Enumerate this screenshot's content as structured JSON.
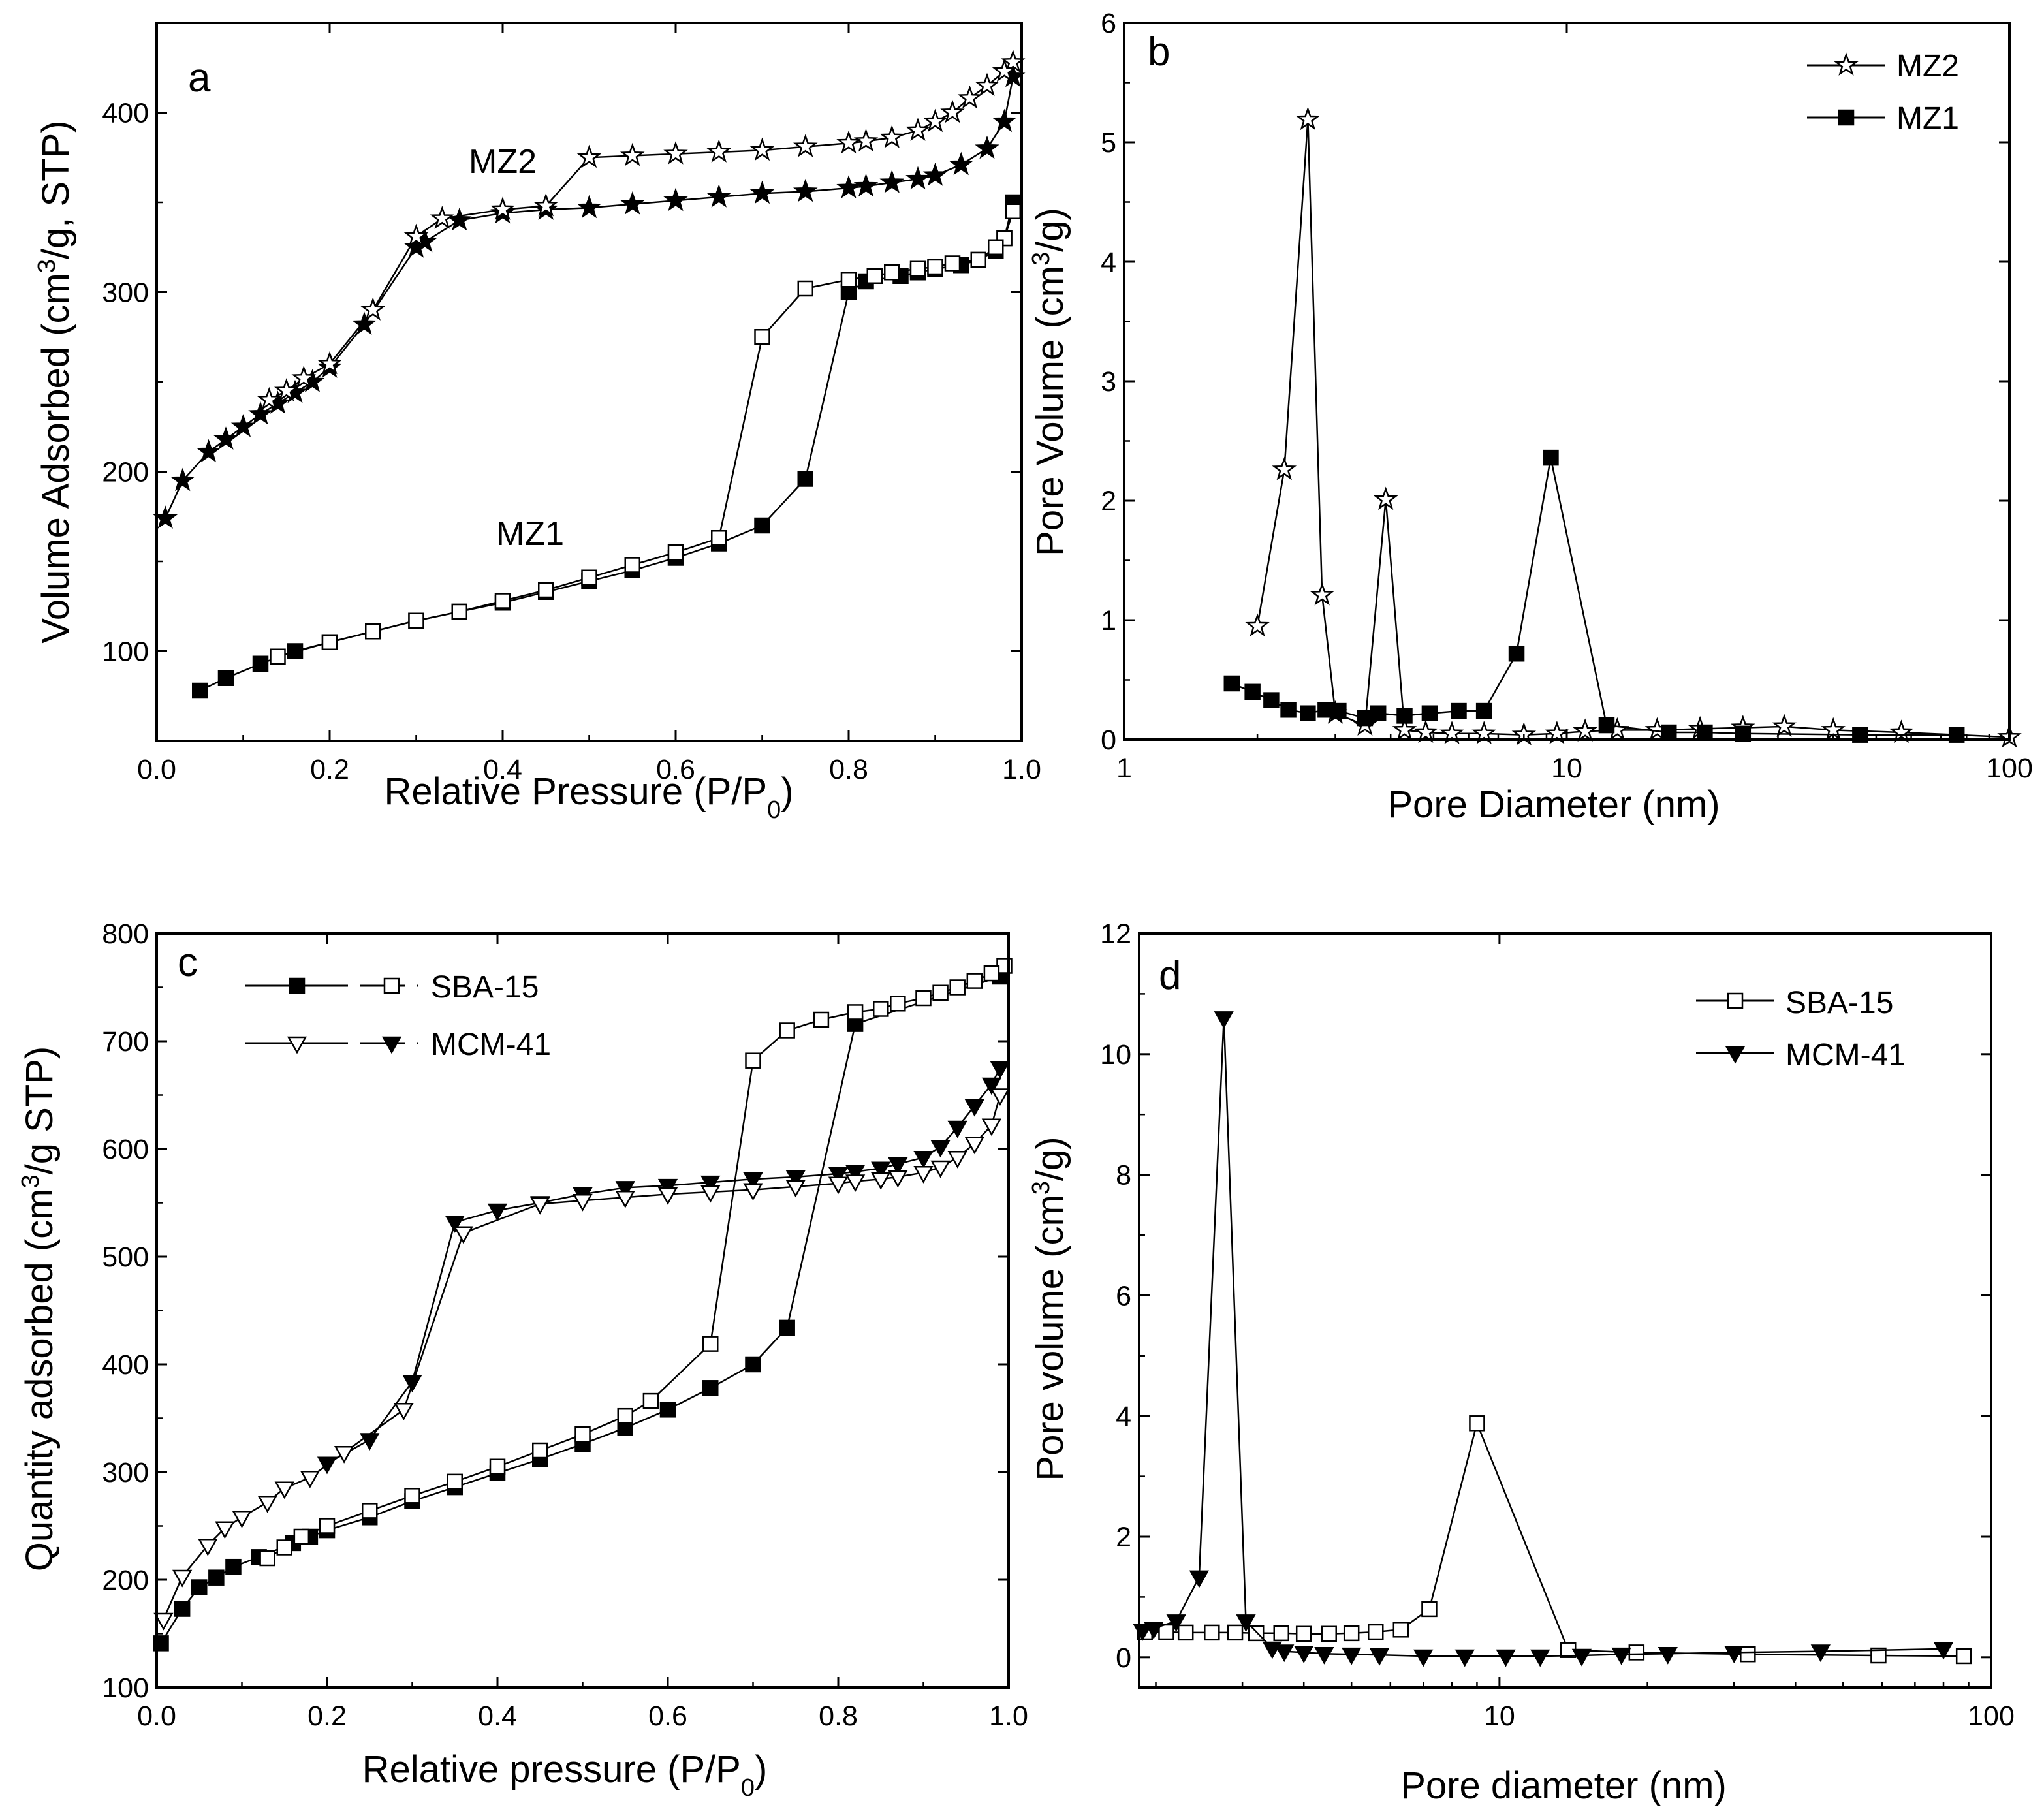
{
  "chart_data": [
    {
      "panel": "a",
      "type": "line",
      "xscale": "linear",
      "xlabel": "Relative Pressure (P/P0)",
      "xlabel_parts": [
        "Relative Pressure (P/P",
        "0",
        ")"
      ],
      "ylabel": "Volume Adsorbed (cm3/g, STP)",
      "ylabel_parts": [
        "Volume Adsorbed (cm",
        "3",
        "/g, STP)"
      ],
      "xlim": [
        0,
        1.0
      ],
      "ylim": [
        50,
        450
      ],
      "xticks": [
        0,
        0.2,
        0.4,
        0.6,
        0.8,
        1.0
      ],
      "xtick_labels": [
        "0.0",
        "0.2",
        "0.4",
        "0.6",
        "0.8",
        "1.0"
      ],
      "yticks": [
        100,
        200,
        300,
        400
      ],
      "ytick_labels": [
        "100",
        "200",
        "300",
        "400"
      ],
      "annotations": [
        {
          "text": "MZ2",
          "x": 0.36,
          "y": 365
        },
        {
          "text": "MZ1",
          "x": 0.44,
          "y": 155
        }
      ],
      "series": [
        {
          "name": "MZ2 adsorption",
          "marker": "star-filled",
          "x": [
            0.01,
            0.03,
            0.06,
            0.08,
            0.1,
            0.12,
            0.14,
            0.16,
            0.18,
            0.2,
            0.24,
            0.3,
            0.31,
            0.35,
            0.4,
            0.45,
            0.5,
            0.55,
            0.6,
            0.65,
            0.7,
            0.75,
            0.8,
            0.82,
            0.85,
            0.88,
            0.9,
            0.93,
            0.96,
            0.98,
            0.99
          ],
          "y": [
            174,
            195,
            211,
            218,
            225,
            232,
            238,
            244,
            250,
            258,
            282,
            325,
            328,
            340,
            344,
            346,
            347,
            349,
            351,
            353,
            355,
            356,
            358,
            359,
            361,
            363,
            365,
            371,
            380,
            395,
            420
          ]
        },
        {
          "name": "MZ2 desorption",
          "marker": "star-open",
          "x": [
            0.99,
            0.98,
            0.96,
            0.94,
            0.92,
            0.9,
            0.88,
            0.85,
            0.82,
            0.8,
            0.75,
            0.7,
            0.65,
            0.6,
            0.55,
            0.5,
            0.45,
            0.4,
            0.33,
            0.3,
            0.25,
            0.2,
            0.17,
            0.15,
            0.13
          ],
          "y": [
            428,
            423,
            415,
            408,
            400,
            395,
            390,
            386,
            384,
            383,
            381,
            379,
            378,
            377,
            376,
            375,
            348,
            346,
            341,
            331,
            290,
            260,
            252,
            245,
            240
          ]
        },
        {
          "name": "MZ1 adsorption",
          "marker": "square-filled",
          "x": [
            0.05,
            0.08,
            0.12,
            0.16,
            0.2,
            0.25,
            0.3,
            0.35,
            0.4,
            0.45,
            0.5,
            0.55,
            0.6,
            0.65,
            0.7,
            0.75,
            0.8,
            0.82,
            0.86,
            0.88,
            0.9,
            0.93,
            0.95,
            0.97,
            0.98,
            0.99
          ],
          "y": [
            78,
            85,
            93,
            100,
            105,
            111,
            117,
            122,
            127,
            133,
            139,
            145,
            152,
            160,
            170,
            196,
            300,
            306,
            309,
            311,
            313,
            315,
            318,
            323,
            330,
            350
          ]
        },
        {
          "name": "MZ1 desorption",
          "marker": "square-open",
          "x": [
            0.99,
            0.98,
            0.97,
            0.95,
            0.92,
            0.9,
            0.88,
            0.85,
            0.83,
            0.8,
            0.75,
            0.7,
            0.65,
            0.6,
            0.55,
            0.5,
            0.45,
            0.4,
            0.35,
            0.3,
            0.25,
            0.2,
            0.14
          ],
          "y": [
            345,
            330,
            325,
            318,
            316,
            314,
            313,
            311,
            309,
            307,
            302,
            275,
            163,
            155,
            148,
            141,
            134,
            128,
            122,
            117,
            111,
            105,
            97
          ]
        }
      ]
    },
    {
      "panel": "b",
      "type": "line",
      "xscale": "log",
      "xlabel": "Pore Diameter (nm)",
      "ylabel": "Pore Volume (cm3/g)",
      "ylabel_parts": [
        "Pore Volume (cm",
        "3",
        "/g)"
      ],
      "xlim": [
        1,
        100
      ],
      "ylim": [
        0,
        6
      ],
      "xticks": [
        1,
        10,
        100
      ],
      "xtick_labels": [
        "1",
        "10",
        "100"
      ],
      "yticks": [
        0,
        1,
        2,
        3,
        4,
        5,
        6
      ],
      "ytick_labels": [
        "0",
        "1",
        "2",
        "3",
        "4",
        "5",
        "6"
      ],
      "legend": {
        "position": "top-right",
        "entries": [
          {
            "label": "MZ2",
            "marker": "star-open"
          },
          {
            "label": "MZ1",
            "marker": "square-filled"
          }
        ]
      },
      "series": [
        {
          "name": "MZ2",
          "marker": "star-open",
          "x": [
            2.0,
            2.3,
            2.6,
            2.8,
            3.0,
            3.5,
            3.9,
            4.3,
            4.8,
            5.5,
            6.5,
            8.0,
            9.5,
            11,
            13,
            16,
            20,
            25,
            31,
            40,
            57,
            100
          ],
          "y": [
            0.95,
            2.26,
            5.19,
            1.21,
            0.22,
            0.12,
            2.01,
            0.08,
            0.06,
            0.05,
            0.05,
            0.04,
            0.05,
            0.07,
            0.08,
            0.08,
            0.09,
            0.1,
            0.11,
            0.08,
            0.06,
            0.02
          ]
        },
        {
          "name": "MZ1",
          "marker": "square-filled",
          "x": [
            1.75,
            1.95,
            2.15,
            2.35,
            2.6,
            2.85,
            3.05,
            3.5,
            3.75,
            4.3,
            4.9,
            5.7,
            6.5,
            7.7,
            9.2,
            12.3,
            17,
            20.5,
            25,
            46,
            76
          ],
          "y": [
            0.47,
            0.4,
            0.33,
            0.25,
            0.22,
            0.25,
            0.24,
            0.18,
            0.22,
            0.2,
            0.22,
            0.24,
            0.24,
            0.72,
            2.36,
            0.12,
            0.06,
            0.06,
            0.05,
            0.04,
            0.04
          ]
        }
      ]
    },
    {
      "panel": "c",
      "type": "line",
      "xscale": "linear",
      "xlabel": "Relative pressure (P/P0)",
      "xlabel_parts": [
        "Relative pressure (P/P",
        "0",
        ")"
      ],
      "ylabel": "Quantity adsorbed (cm3/g STP)",
      "ylabel_parts": [
        "Quantity adsorbed (cm",
        "3",
        "/g STP)"
      ],
      "xlim": [
        0,
        1.0
      ],
      "ylim": [
        100,
        800
      ],
      "xticks": [
        0,
        0.2,
        0.4,
        0.6,
        0.8,
        1.0
      ],
      "xtick_labels": [
        "0.0",
        "0.2",
        "0.4",
        "0.6",
        "0.8",
        "1.0"
      ],
      "yticks": [
        100,
        200,
        300,
        400,
        500,
        600,
        700,
        800
      ],
      "ytick_labels": [
        "100",
        "200",
        "300",
        "400",
        "500",
        "600",
        "700",
        "800"
      ],
      "legend": {
        "position": "top-left",
        "entries": [
          {
            "label": "SBA-15",
            "marker_a": "square-filled",
            "marker_b": "square-open"
          },
          {
            "label": "MCM-41",
            "marker_a": "triangle-down-open",
            "marker_b": "triangle-down-filled"
          }
        ]
      },
      "series": [
        {
          "name": "SBA-15 adsorption",
          "marker": "square-filled",
          "x": [
            0.005,
            0.03,
            0.05,
            0.07,
            0.09,
            0.12,
            0.16,
            0.18,
            0.2,
            0.25,
            0.3,
            0.35,
            0.4,
            0.45,
            0.5,
            0.55,
            0.6,
            0.65,
            0.7,
            0.74,
            0.82,
            0.99
          ],
          "y": [
            141,
            173,
            193,
            202,
            212,
            221,
            234,
            240,
            246,
            258,
            273,
            286,
            299,
            312,
            326,
            341,
            358,
            378,
            400,
            434,
            716,
            760
          ]
        },
        {
          "name": "SBA-15 desorption",
          "marker": "square-open",
          "x": [
            0.995,
            0.98,
            0.96,
            0.94,
            0.92,
            0.9,
            0.87,
            0.85,
            0.82,
            0.78,
            0.74,
            0.7,
            0.65,
            0.58,
            0.55,
            0.5,
            0.45,
            0.4,
            0.35,
            0.3,
            0.25,
            0.2,
            0.17,
            0.15,
            0.13
          ],
          "y": [
            770,
            763,
            756,
            750,
            745,
            740,
            735,
            730,
            727,
            720,
            710,
            682,
            419,
            366,
            352,
            335,
            320,
            305,
            291,
            278,
            264,
            250,
            240,
            230,
            220
          ]
        },
        {
          "name": "MCM-41 adsorption",
          "marker": "triangle-down-filled",
          "x": [
            0.2,
            0.25,
            0.3,
            0.35,
            0.4,
            0.45,
            0.5,
            0.55,
            0.6,
            0.65,
            0.7,
            0.75,
            0.8,
            0.82,
            0.85,
            0.87,
            0.9,
            0.92,
            0.94,
            0.96,
            0.98,
            0.99
          ],
          "y": [
            308,
            330,
            384,
            532,
            543,
            550,
            558,
            564,
            566,
            569,
            572,
            574,
            577,
            579,
            582,
            586,
            592,
            602,
            620,
            640,
            660,
            675
          ]
        },
        {
          "name": "MCM-41 desorption",
          "marker": "triangle-down-open",
          "x": [
            0.99,
            0.98,
            0.96,
            0.94,
            0.92,
            0.9,
            0.87,
            0.85,
            0.82,
            0.8,
            0.75,
            0.7,
            0.65,
            0.6,
            0.55,
            0.5,
            0.45,
            0.36,
            0.29,
            0.22,
            0.18,
            0.15,
            0.13,
            0.1,
            0.08,
            0.06,
            0.03,
            0.008
          ],
          "y": [
            650,
            622,
            605,
            592,
            583,
            578,
            574,
            572,
            570,
            568,
            565,
            562,
            560,
            558,
            555,
            552,
            549,
            522,
            358,
            318,
            295,
            285,
            272,
            258,
            248,
            232,
            203,
            163
          ]
        }
      ]
    },
    {
      "panel": "d",
      "type": "line",
      "xscale": "log",
      "xlabel": "Pore diameter (nm)",
      "ylabel": "Pore volume (cm3/g)",
      "ylabel_parts": [
        "Pore volume (cm",
        "3",
        "/g)"
      ],
      "xlim": [
        1.85,
        100
      ],
      "ylim": [
        -0.5,
        12
      ],
      "xticks": [
        10,
        100
      ],
      "xtick_labels": [
        "10",
        "100"
      ],
      "yticks": [
        0,
        2,
        4,
        6,
        8,
        10,
        12
      ],
      "ytick_labels": [
        "0",
        "2",
        "4",
        "6",
        "8",
        "10",
        "12"
      ],
      "legend": {
        "position": "top-right",
        "entries": [
          {
            "label": "SBA-15",
            "marker": "square-open"
          },
          {
            "label": "MCM-41",
            "marker": "triangle-down-filled"
          }
        ]
      },
      "series": [
        {
          "name": "SBA-15",
          "marker": "square-open",
          "x": [
            1.9,
            2.1,
            2.3,
            2.6,
            2.9,
            3.2,
            3.6,
            4.0,
            4.5,
            5.0,
            5.6,
            6.3,
            7.2,
            9.0,
            13.8,
            19,
            32,
            59,
            88
          ],
          "y": [
            0.42,
            0.42,
            0.41,
            0.41,
            0.41,
            0.4,
            0.4,
            0.39,
            0.39,
            0.4,
            0.42,
            0.46,
            0.8,
            3.88,
            0.12,
            0.08,
            0.05,
            0.03,
            0.02
          ]
        },
        {
          "name": "MCM-41",
          "marker": "triangle-down-filled",
          "x": [
            1.88,
            1.98,
            2.2,
            2.45,
            2.75,
            3.05,
            3.45,
            3.65,
            4.0,
            4.4,
            5.0,
            5.7,
            7.0,
            8.5,
            10.3,
            12.1,
            14.7,
            17.7,
            22,
            30,
            45,
            80
          ],
          "y": [
            0.45,
            0.48,
            0.6,
            1.33,
            10.6,
            0.6,
            0.15,
            0.1,
            0.08,
            0.06,
            0.05,
            0.04,
            0.02,
            0.02,
            0.02,
            0.02,
            0.03,
            0.05,
            0.06,
            0.08,
            0.1,
            0.14
          ]
        }
      ]
    }
  ]
}
